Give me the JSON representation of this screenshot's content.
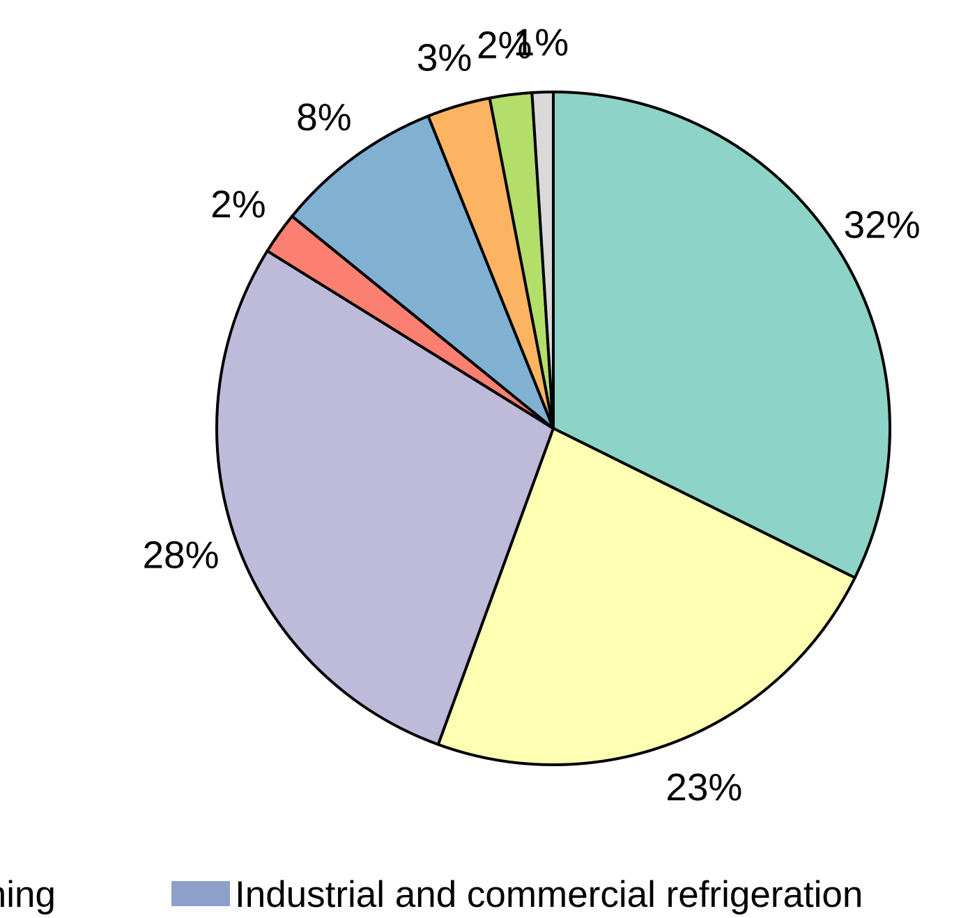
{
  "chart_data": {
    "type": "pie",
    "start_angle_deg": 0,
    "direction": "clockwise",
    "slices": [
      {
        "label": "32%",
        "value": 32,
        "color": "#8dd3c7"
      },
      {
        "label": "23%",
        "value": 23,
        "color": "#ffffb3"
      },
      {
        "label": "28%",
        "value": 28,
        "color": "#bebada"
      },
      {
        "label": "2%",
        "value": 2,
        "color": "#fb8072"
      },
      {
        "label": "8%",
        "value": 8,
        "color": "#80b1d3"
      },
      {
        "label": "3%",
        "value": 3,
        "color": "#fdb462"
      },
      {
        "label": "2%",
        "value": 2,
        "color": "#b3de69"
      },
      {
        "label": "1%",
        "value": 1,
        "color": "#d9d9d9"
      }
    ],
    "legend": [
      {
        "label": "ning",
        "color": null
      },
      {
        "label": "Industrial and commercial refrigeration",
        "color": "#8da0cb"
      }
    ]
  }
}
